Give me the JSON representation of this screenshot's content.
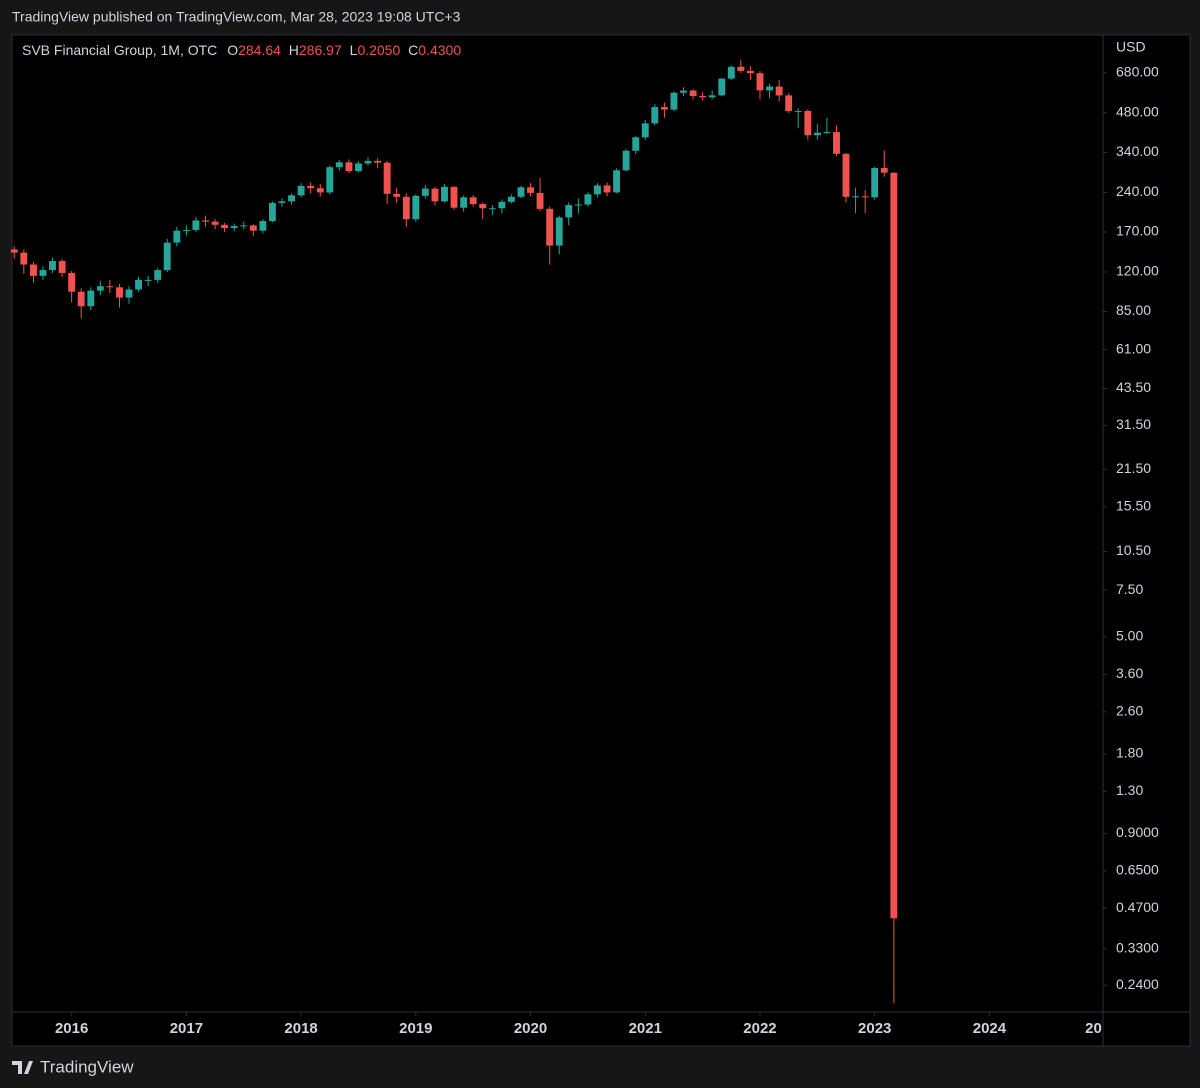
{
  "header": "TradingView published on TradingView.com, Mar 28, 2023 19:08 UTC+3",
  "footer": "TradingView",
  "chart_data": {
    "type": "candlestick",
    "title": "SVB Financial Group, 1M, OTC",
    "ohlc_legend": [
      {
        "key": "O",
        "text": "284.64"
      },
      {
        "key": "H",
        "text": "286.97"
      },
      {
        "key": "L",
        "text": "0.2050"
      },
      {
        "key": "C",
        "text": "0.4300"
      }
    ],
    "currency": "USD",
    "log_scale": true,
    "up_color": "#26a69a",
    "down_color": "#ef5350",
    "x": [
      2015.5,
      2015.583,
      2015.667,
      2015.75,
      2015.833,
      2015.917,
      2016,
      2016.083,
      2016.167,
      2016.25,
      2016.333,
      2016.417,
      2016.5,
      2016.583,
      2016.667,
      2016.75,
      2016.833,
      2016.917,
      2017,
      2017.083,
      2017.167,
      2017.25,
      2017.333,
      2017.417,
      2017.5,
      2017.583,
      2017.667,
      2017.75,
      2017.833,
      2017.917,
      2018,
      2018.083,
      2018.167,
      2018.25,
      2018.333,
      2018.417,
      2018.5,
      2018.583,
      2018.667,
      2018.75,
      2018.833,
      2018.917,
      2019,
      2019.083,
      2019.167,
      2019.25,
      2019.333,
      2019.417,
      2019.5,
      2019.583,
      2019.667,
      2019.75,
      2019.833,
      2019.917,
      2020,
      2020.083,
      2020.167,
      2020.25,
      2020.333,
      2020.417,
      2020.5,
      2020.583,
      2020.667,
      2020.75,
      2020.833,
      2020.917,
      2021,
      2021.083,
      2021.167,
      2021.25,
      2021.333,
      2021.417,
      2021.5,
      2021.583,
      2021.667,
      2021.75,
      2021.833,
      2021.917,
      2022,
      2022.083,
      2022.167,
      2022.25,
      2022.333,
      2022.417,
      2022.5,
      2022.583,
      2022.667,
      2022.75,
      2022.833,
      2022.917,
      2023,
      2023.083,
      2023.167
    ],
    "open": [
      146,
      142,
      128,
      116,
      122,
      132,
      119,
      101,
      89,
      102,
      106,
      105,
      96,
      103,
      112,
      112,
      122,
      155,
      172,
      173,
      188,
      186,
      181,
      176,
      179,
      180,
      172,
      187,
      219,
      222,
      234,
      254,
      249,
      240,
      299,
      312,
      289,
      309,
      316,
      311,
      237,
      231,
      190,
      233,
      248,
      222,
      252,
      210,
      230,
      217,
      209,
      209,
      221,
      231,
      251,
      239,
      208,
      151,
      193,
      215,
      216,
      236,
      255,
      240,
      291,
      345,
      388,
      438,
      505,
      494,
      572,
      583,
      556,
      550,
      559,
      647,
      717,
      692,
      678,
      584,
      604,
      559,
      488,
      488,
      395,
      404,
      406,
      336,
      231,
      232,
      230,
      297,
      284.64
    ],
    "high": [
      150,
      146,
      131,
      126,
      136,
      134,
      121,
      104,
      105,
      111,
      112,
      108,
      106,
      115,
      116,
      124,
      160,
      178,
      180,
      194,
      196,
      190,
      184,
      183,
      186,
      182,
      190,
      222,
      228,
      238,
      260,
      262,
      258,
      304,
      318,
      320,
      315,
      326,
      323,
      316,
      250,
      238,
      236,
      256,
      252,
      258,
      253,
      234,
      235,
      220,
      215,
      226,
      236,
      254,
      260,
      272,
      212,
      196,
      220,
      228,
      240,
      260,
      262,
      296,
      350,
      392,
      452,
      518,
      525,
      578,
      600,
      590,
      575,
      582,
      650,
      725,
      763,
      720,
      690,
      620,
      640,
      570,
      500,
      495,
      435,
      460,
      430,
      338,
      250,
      245,
      300,
      346,
      286.97
    ],
    "low": [
      135,
      118,
      109,
      112,
      119,
      115,
      92,
      80,
      86,
      98,
      100,
      88,
      91,
      101,
      106,
      109,
      120,
      150,
      165,
      170,
      178,
      174,
      170,
      171,
      174,
      164,
      168,
      185,
      212,
      216,
      230,
      238,
      231,
      236,
      290,
      284,
      286,
      303,
      296,
      217,
      219,
      178,
      186,
      228,
      214,
      220,
      206,
      203,
      212,
      190,
      197,
      200,
      218,
      228,
      232,
      204,
      128,
      140,
      180,
      200,
      212,
      230,
      232,
      238,
      288,
      335,
      380,
      430,
      460,
      488,
      555,
      540,
      535,
      540,
      555,
      640,
      680,
      640,
      540,
      545,
      530,
      480,
      420,
      380,
      380,
      400,
      330,
      220,
      200,
      200,
      225,
      275,
      0.205
    ],
    "close": [
      142,
      128,
      116,
      122,
      132,
      119,
      101,
      89,
      102,
      106,
      105,
      96,
      103,
      112,
      112,
      122,
      155,
      172,
      173,
      188,
      186,
      181,
      176,
      179,
      180,
      172,
      187,
      219,
      222,
      234,
      254,
      249,
      240,
      299,
      312,
      289,
      309,
      316,
      311,
      237,
      231,
      190,
      233,
      248,
      222,
      252,
      210,
      230,
      217,
      209,
      209,
      221,
      231,
      251,
      239,
      208,
      151,
      193,
      215,
      216,
      236,
      255,
      240,
      291,
      345,
      388,
      438,
      505,
      494,
      572,
      583,
      556,
      550,
      559,
      647,
      717,
      692,
      678,
      584,
      604,
      559,
      488,
      488,
      395,
      404,
      406,
      336,
      231,
      232,
      230,
      297,
      285,
      0.43
    ],
    "xlim": [
      2015.48,
      2024.99
    ],
    "xticks": [
      2016,
      2017,
      2018,
      2019,
      2020,
      2021,
      2022,
      2023,
      2024,
      {
        "value": 2025,
        "label": "20"
      }
    ],
    "ylim": [
      0.19,
      946
    ],
    "yticks": [
      {
        "value": 680,
        "label": "680.00"
      },
      {
        "value": 480,
        "label": "480.00"
      },
      {
        "value": 340,
        "label": "340.00"
      },
      {
        "value": 240,
        "label": "240.00"
      },
      {
        "value": 170,
        "label": "170.00"
      },
      {
        "value": 120,
        "label": "120.00"
      },
      {
        "value": 85,
        "label": "85.00"
      },
      {
        "value": 61,
        "label": "61.00"
      },
      {
        "value": 43.5,
        "label": "43.50"
      },
      {
        "value": 31.5,
        "label": "31.50"
      },
      {
        "value": 21.5,
        "label": "21.50"
      },
      {
        "value": 15.5,
        "label": "15.50"
      },
      {
        "value": 10.5,
        "label": "10.50"
      },
      {
        "value": 7.5,
        "label": "7.50"
      },
      {
        "value": 5,
        "label": "5.00"
      },
      {
        "value": 3.6,
        "label": "3.60"
      },
      {
        "value": 2.6,
        "label": "2.60"
      },
      {
        "value": 1.8,
        "label": "1.80"
      },
      {
        "value": 1.3,
        "label": "1.30"
      },
      {
        "value": 0.9,
        "label": "0.9000"
      },
      {
        "value": 0.65,
        "label": "0.6500"
      },
      {
        "value": 0.47,
        "label": "0.4700"
      },
      {
        "value": 0.33,
        "label": "0.3300"
      },
      {
        "value": 0.24,
        "label": "0.2400"
      }
    ],
    "grid": false
  }
}
